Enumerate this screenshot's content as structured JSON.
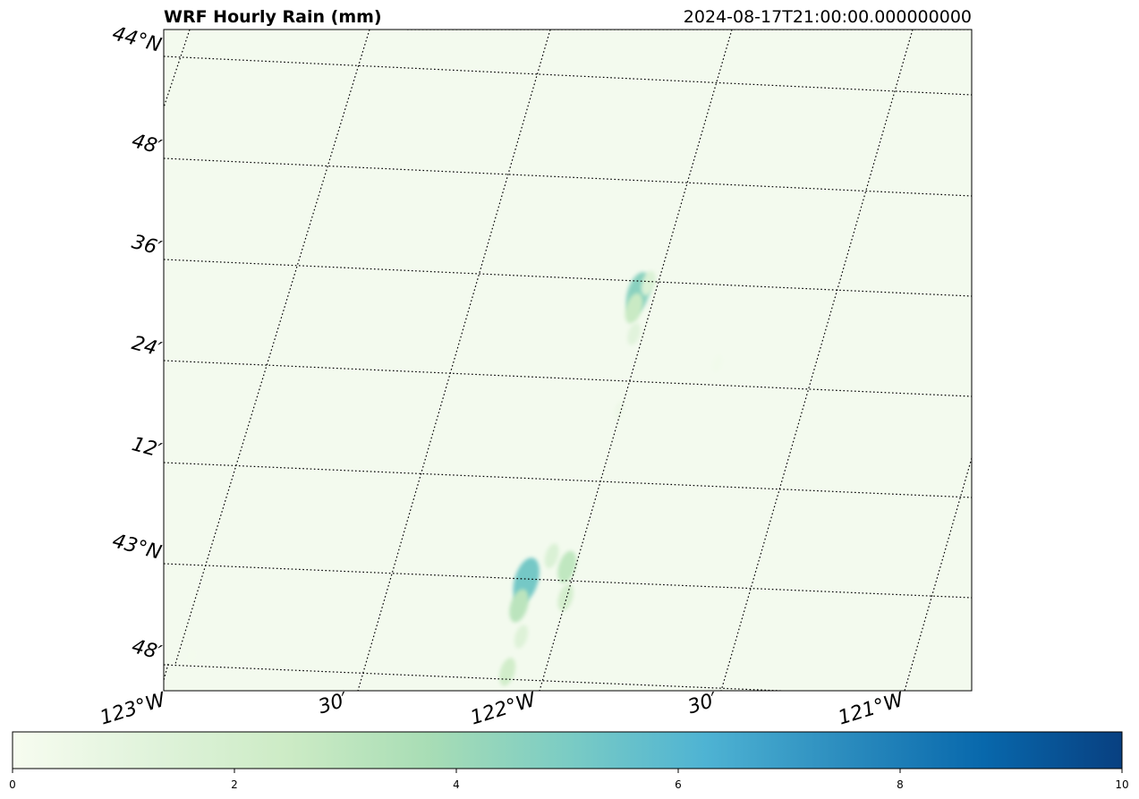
{
  "chart_data": {
    "type": "heatmap",
    "title": "WRF Hourly Rain (mm)",
    "timestamp": "2024-08-17T21:00:00.000000000",
    "background_color": "#f3faee",
    "colormap": "GnBu",
    "colormap_stops": [
      "#f7fcf0",
      "#e0f3db",
      "#ccebc5",
      "#a8ddb5",
      "#7bccc4",
      "#4eb3d3",
      "#2b8cbe",
      "#0868ac",
      "#084081"
    ],
    "color_range": [
      0,
      10
    ],
    "colorbar_ticks": [
      "0",
      "2",
      "4",
      "6",
      "8",
      "10"
    ],
    "lat_labels": [
      "44°N",
      "48′",
      "36′",
      "24′",
      "12′",
      "43°N",
      "48′"
    ],
    "lon_labels": [
      "123°W",
      "30′",
      "122°W",
      "30′",
      "121°W"
    ],
    "precip_cells": [
      {
        "lon": -122.07,
        "lat": 43.58,
        "value": 4.6
      },
      {
        "lon": -122.07,
        "lat": 43.55,
        "value": 2.6
      },
      {
        "lon": -122.05,
        "lat": 43.6,
        "value": 1.6
      },
      {
        "lon": -122.05,
        "lat": 43.5,
        "value": 1.2
      },
      {
        "lon": -122.03,
        "lat": 43.35,
        "value": 0.5
      },
      {
        "lon": -121.8,
        "lat": 43.45,
        "value": 0.3
      },
      {
        "lon": -122.15,
        "lat": 43.01,
        "value": 5.2
      },
      {
        "lon": -122.15,
        "lat": 42.96,
        "value": 3.1
      },
      {
        "lon": -122.1,
        "lat": 43.06,
        "value": 1.6
      },
      {
        "lon": -122.05,
        "lat": 43.04,
        "value": 2.9
      },
      {
        "lon": -122.03,
        "lat": 42.98,
        "value": 2.0
      },
      {
        "lon": -122.12,
        "lat": 42.9,
        "value": 1.4
      },
      {
        "lon": -122.13,
        "lat": 42.83,
        "value": 2.2
      },
      {
        "lon": -122.16,
        "lat": 42.76,
        "value": 1.1
      },
      {
        "lon": -122.18,
        "lat": 42.7,
        "value": 0.6
      },
      {
        "lon": -123.0,
        "lat": 42.83,
        "value": 0.2
      }
    ]
  }
}
